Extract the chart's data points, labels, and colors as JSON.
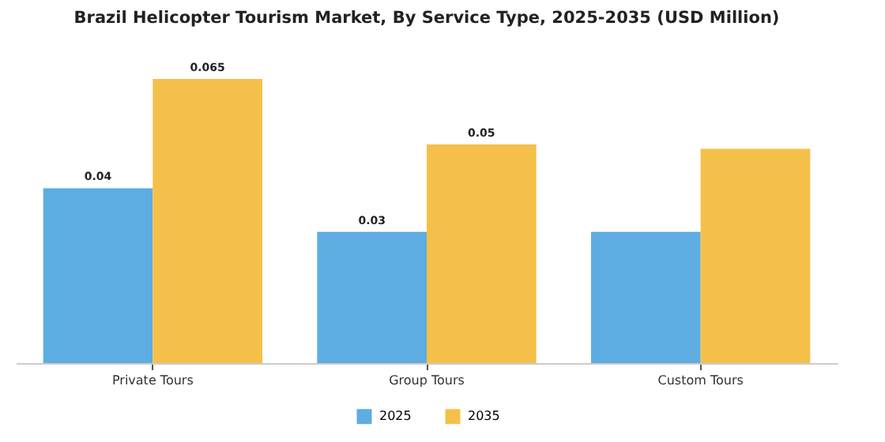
{
  "chart_data": {
    "type": "bar",
    "title": "Brazil Helicopter Tourism Market, By Service Type, 2025-2035 (USD Million)",
    "categories": [
      "Private Tours",
      "Group Tours",
      "Custom Tours"
    ],
    "series": [
      {
        "name": "2025",
        "color": "#5dade2",
        "values": [
          0.04,
          0.03,
          0.03
        ],
        "value_labels": [
          "0.04",
          "0.03",
          null
        ]
      },
      {
        "name": "2035",
        "color": "#f5c04a",
        "values": [
          0.065,
          0.05,
          0.049
        ],
        "value_labels": [
          "0.065",
          "0.05",
          null
        ]
      }
    ],
    "legend": "bottom",
    "grid": false
  }
}
